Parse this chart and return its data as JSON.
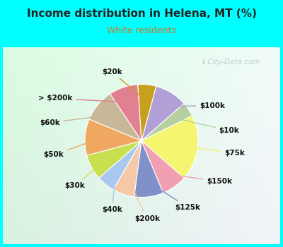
{
  "title": "Income distribution in Helena, MT (%)",
  "subtitle": "White residents",
  "title_color": "#222222",
  "subtitle_color": "#cc7722",
  "bg_top": "#00ffff",
  "bg_chart_color": "#d0ede0",
  "labels": [
    "$100k",
    "$10k",
    "$75k",
    "$150k",
    "$125k",
    "$200k",
    "$40k",
    "$30k",
    "$50k",
    "$60k",
    "> $200k",
    "$20k"
  ],
  "sizes": [
    9,
    4,
    18,
    7,
    8,
    6,
    5,
    7,
    10,
    9,
    8,
    5
  ],
  "colors": [
    "#b0a0d5",
    "#b5cfa0",
    "#f5f570",
    "#f0a0b0",
    "#8090c8",
    "#f5c8a8",
    "#a8c8f0",
    "#c8e050",
    "#f0a860",
    "#c8b898",
    "#e08090",
    "#c8a020"
  ],
  "startangle": 75,
  "label_fontsize": 7.5,
  "watermark": " City-Data.com",
  "label_color": "#111111"
}
